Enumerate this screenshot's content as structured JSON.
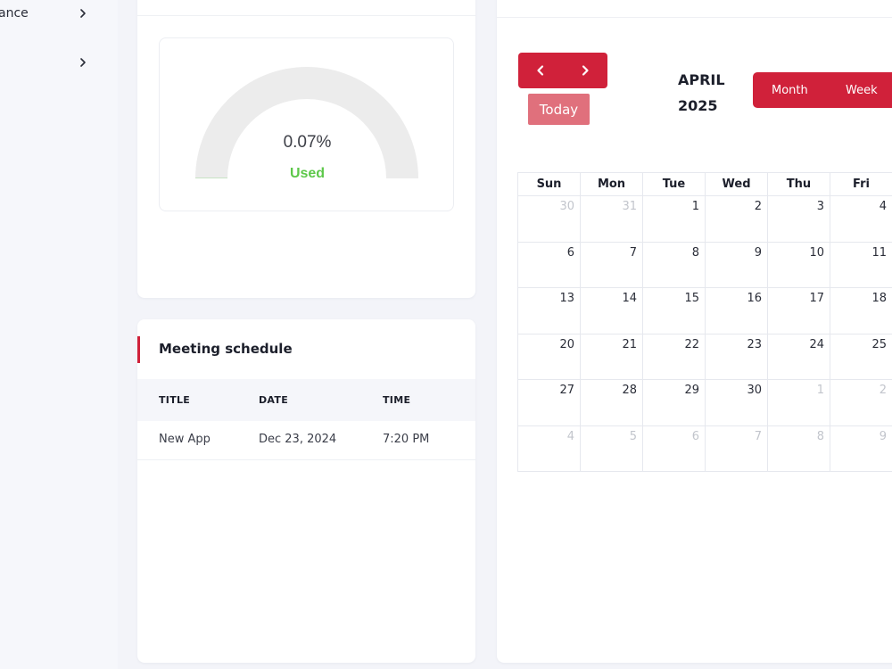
{
  "sidebar": {
    "items": [
      {
        "label": "ance"
      },
      {
        "label": ""
      }
    ]
  },
  "storage": {
    "percent_text": "0.07%",
    "used_label": "Used",
    "used_fraction": 0.0007,
    "colors": {
      "track": "#ececec",
      "fill": "#5dc84a",
      "used_text": "#5dc84a"
    }
  },
  "meeting": {
    "title": "Meeting schedule",
    "columns": [
      "TITLE",
      "DATE",
      "TIME"
    ],
    "rows": [
      {
        "title": "New App",
        "date": "Dec 23, 2024",
        "time": "7:20 PM"
      }
    ]
  },
  "calendar": {
    "month": "APRIL",
    "year": "2025",
    "today_label": "Today",
    "views": [
      "Month",
      "Week"
    ],
    "weekdays": [
      "Sun",
      "Mon",
      "Tue",
      "Wed",
      "Thu",
      "Fri"
    ],
    "weeks": [
      [
        "30",
        "31",
        "1",
        "2",
        "3",
        "4"
      ],
      [
        "6",
        "7",
        "8",
        "9",
        "10",
        "11"
      ],
      [
        "13",
        "14",
        "15",
        "16",
        "17",
        "18"
      ],
      [
        "20",
        "21",
        "22",
        "23",
        "24",
        "25"
      ],
      [
        "27",
        "28",
        "29",
        "30",
        "1",
        "2"
      ],
      [
        "4",
        "5",
        "6",
        "7",
        "8",
        "9"
      ]
    ],
    "muted": [
      [
        0,
        0
      ],
      [
        0,
        1
      ],
      [
        4,
        4
      ],
      [
        4,
        5
      ],
      [
        5,
        0
      ],
      [
        5,
        1
      ],
      [
        5,
        2
      ],
      [
        5,
        3
      ],
      [
        5,
        4
      ],
      [
        5,
        5
      ]
    ],
    "accent": "#d0213a"
  }
}
